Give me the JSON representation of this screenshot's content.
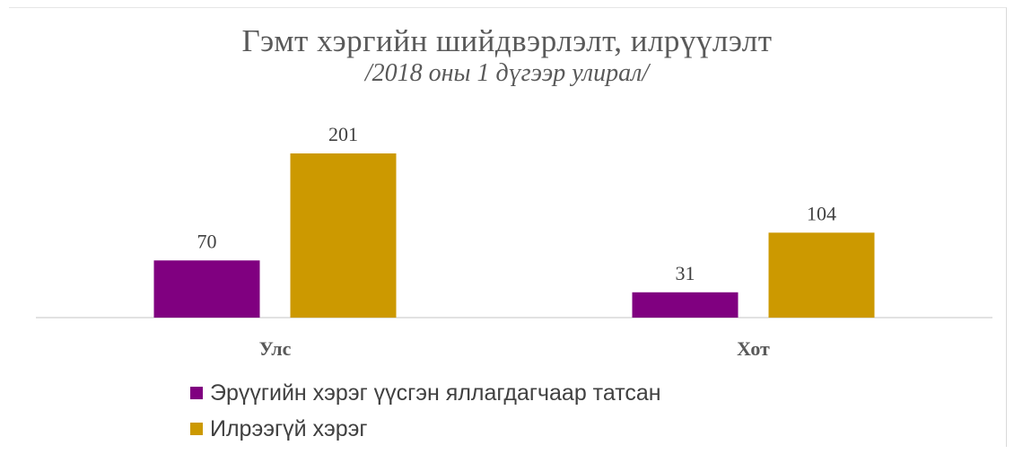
{
  "chart_data": {
    "type": "bar",
    "title": "Гэмт хэргийн шийдвэрлэлт, илрүүлэлт",
    "subtitle": "/2018 оны 1 дүгээр улирал/",
    "categories": [
      "Улс",
      "Хот"
    ],
    "series": [
      {
        "name": "Эрүүгийн хэрэг үүсгэн яллагдагчаар татсан",
        "values": [
          70,
          31
        ],
        "color": "#800080"
      },
      {
        "name": "Илрээгүй хэрэг",
        "values": [
          201,
          104
        ],
        "color": "#CC9900"
      }
    ],
    "ylim": [
      0,
      201
    ],
    "grid": false,
    "data_labels": true,
    "legend_position": "bottom-left"
  }
}
